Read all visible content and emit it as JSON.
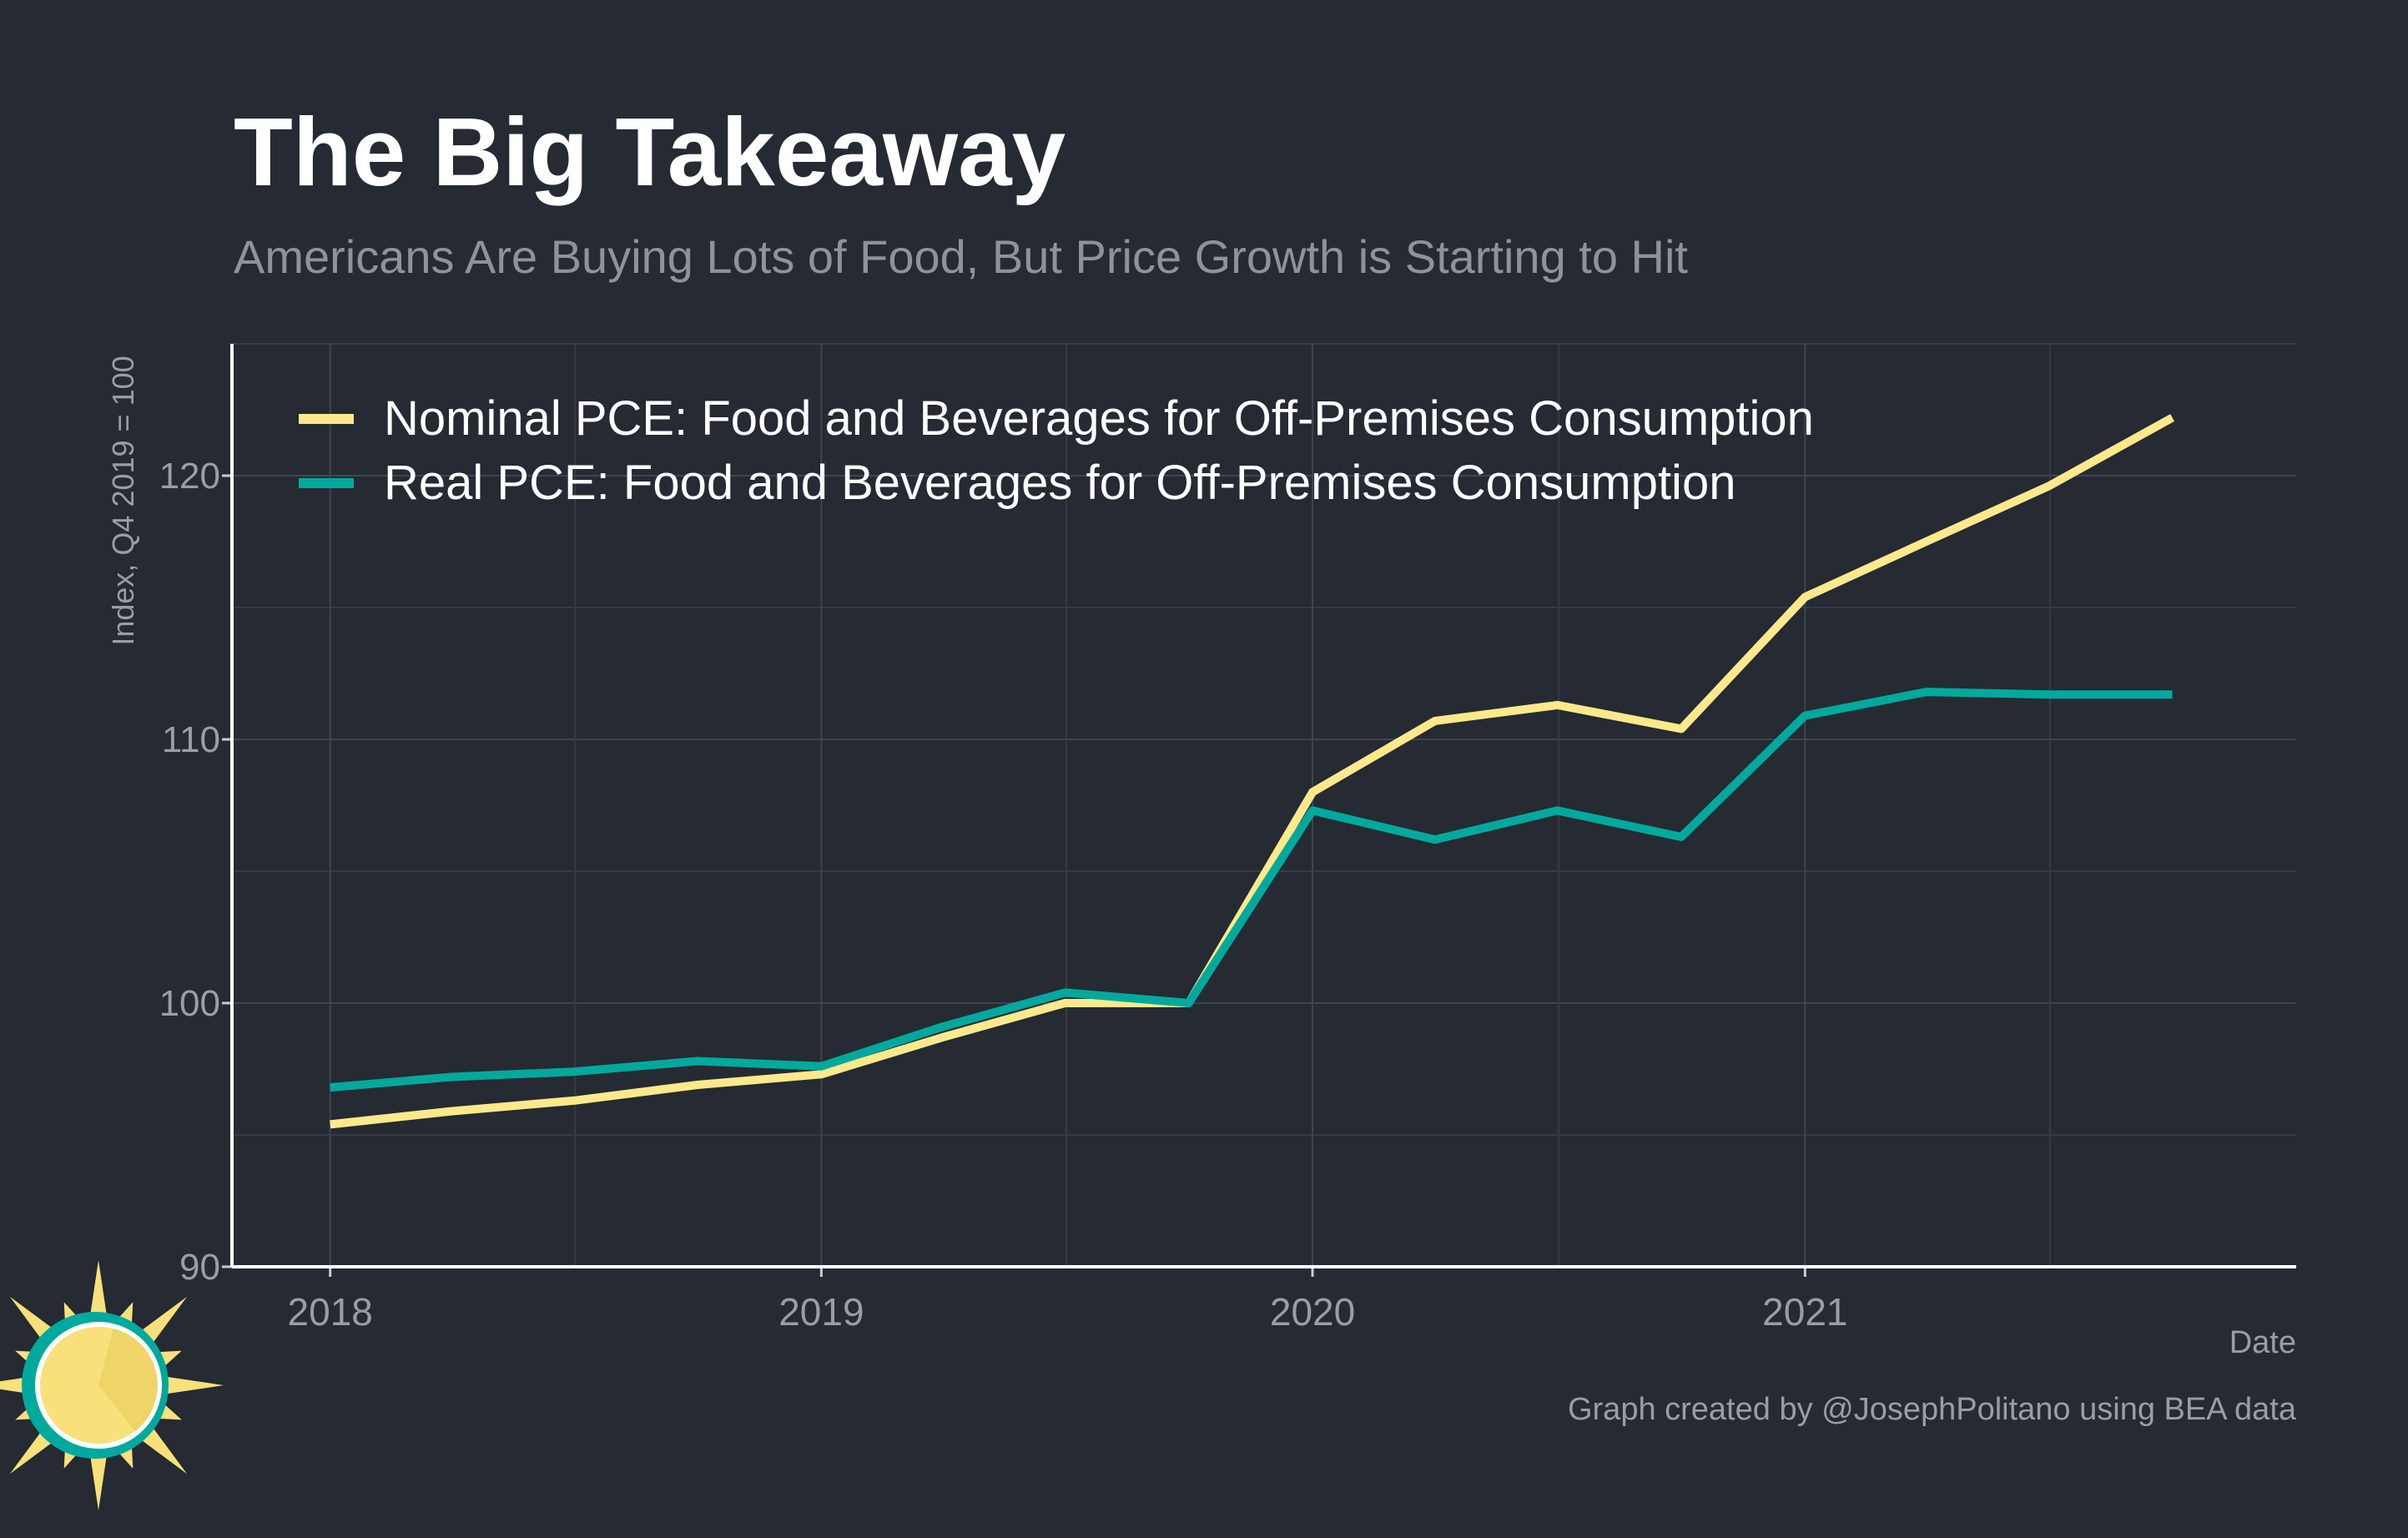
{
  "colors": {
    "background": "#252a33",
    "nominal": "#fde98b",
    "real": "#00a99d",
    "logo_sun": "#f8e07a",
    "logo_ring": "#00a99d"
  },
  "logo": {
    "icon": "sun-logo-icon"
  },
  "chart_data": {
    "type": "line",
    "title": "The Big Takeaway",
    "subtitle": "Americans Are Buying Lots of Food, But Price Growth is Starting to Hit",
    "xlabel": "Date",
    "ylabel": "Index, Q4 2019 = 100",
    "caption": "Graph created by @JosephPolitano using BEA data",
    "x": [
      "2018-01-01",
      "2018-04-01",
      "2018-07-01",
      "2018-10-01",
      "2019-01-01",
      "2019-04-01",
      "2019-07-01",
      "2019-10-01",
      "2020-01-01",
      "2020-04-01",
      "2020-07-01",
      "2020-10-01",
      "2021-01-01",
      "2021-04-01",
      "2021-07-01",
      "2021-10-01"
    ],
    "xlim": [
      "2017-10-20",
      "2022-01-01"
    ],
    "xticks": [
      {
        "date": "2018-01-01",
        "label": "2018"
      },
      {
        "date": "2019-01-01",
        "label": "2019"
      },
      {
        "date": "2020-01-01",
        "label": "2020"
      },
      {
        "date": "2021-01-01",
        "label": "2021"
      }
    ],
    "ylim": [
      90,
      125
    ],
    "yticks": [
      90,
      100,
      110,
      120
    ],
    "grid": true,
    "legend_position": "top-left",
    "series": [
      {
        "name": "Nominal PCE: Food and Beverages for Off-Premises Consumption",
        "color": "#fde98b",
        "values": [
          95.4,
          95.9,
          96.3,
          96.9,
          97.3,
          98.7,
          100.0,
          100.0,
          108.0,
          110.7,
          111.3,
          110.4,
          115.4,
          117.5,
          119.6,
          122.2
        ]
      },
      {
        "name": "Real PCE: Food and Beverages for Off-Premises Consumption",
        "color": "#00a99d",
        "values": [
          96.8,
          97.2,
          97.4,
          97.8,
          97.6,
          99.1,
          100.4,
          100.0,
          107.3,
          106.2,
          107.3,
          106.3,
          110.9,
          111.8,
          111.7,
          111.7
        ]
      }
    ]
  }
}
